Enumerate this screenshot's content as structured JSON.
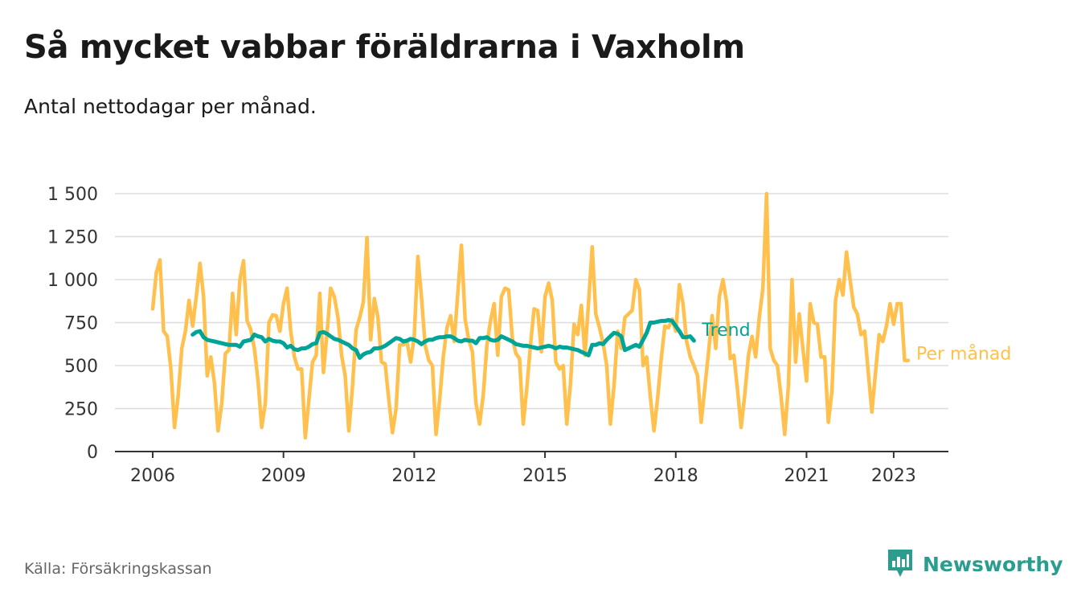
{
  "title": "Så mycket vabbar föräldrarna i Vaxholm",
  "subtitle": "Antal nettodagar per månad.",
  "source": "Källa: Försäkringskassan",
  "brand": {
    "name": "Newsworthy",
    "icon": "newsworthy-logo-icon"
  },
  "colors": {
    "per_month": "#ffc04d",
    "trend": "#00a497",
    "grid": "#dddddd",
    "axis": "#333333"
  },
  "chart_data": {
    "type": "line",
    "x_start": "2006-01",
    "x_end": "2023-05",
    "xticks": [
      {
        "date": "2006-01",
        "label": "2006"
      },
      {
        "date": "2009-01",
        "label": "2009"
      },
      {
        "date": "2012-01",
        "label": "2012"
      },
      {
        "date": "2015-01",
        "label": "2015"
      },
      {
        "date": "2018-01",
        "label": "2018"
      },
      {
        "date": "2021-01",
        "label": "2021"
      },
      {
        "date": "2023-01",
        "label": "2023"
      }
    ],
    "yticks": [
      {
        "value": 0,
        "label": "0"
      },
      {
        "value": 250,
        "label": "250"
      },
      {
        "value": 500,
        "label": "500"
      },
      {
        "value": 750,
        "label": "750"
      },
      {
        "value": 1000,
        "label": "1 000"
      },
      {
        "value": 1250,
        "label": "1 250"
      },
      {
        "value": 1500,
        "label": "1 500"
      }
    ],
    "ylim": [
      0,
      1550
    ],
    "grid": true,
    "series": [
      {
        "name": "Per månad",
        "key": "per_month",
        "start": "2006-01",
        "values": [
          830,
          1040,
          1115,
          700,
          670,
          480,
          140,
          320,
          600,
          700,
          880,
          730,
          900,
          1095,
          900,
          440,
          550,
          400,
          120,
          280,
          570,
          590,
          920,
          680,
          1000,
          1110,
          760,
          710,
          600,
          410,
          140,
          280,
          750,
          795,
          790,
          700,
          860,
          950,
          700,
          550,
          480,
          480,
          80,
          300,
          520,
          560,
          920,
          460,
          690,
          950,
          900,
          780,
          560,
          440,
          120,
          380,
          710,
          780,
          870,
          1245,
          650,
          890,
          780,
          520,
          510,
          300,
          110,
          250,
          620,
          620,
          640,
          520,
          670,
          1135,
          900,
          620,
          530,
          500,
          100,
          300,
          550,
          720,
          790,
          640,
          920,
          1200,
          770,
          650,
          580,
          280,
          160,
          330,
          620,
          760,
          860,
          560,
          900,
          950,
          940,
          660,
          570,
          540,
          160,
          370,
          620,
          830,
          820,
          580,
          900,
          980,
          880,
          520,
          480,
          500,
          160,
          390,
          740,
          680,
          850,
          560,
          870,
          1190,
          800,
          720,
          630,
          500,
          160,
          380,
          700,
          600,
          780,
          800,
          820,
          1000,
          940,
          500,
          550,
          320,
          120,
          310,
          540,
          730,
          720,
          770,
          700,
          970,
          860,
          640,
          550,
          500,
          440,
          170,
          370,
          570,
          790,
          600,
          900,
          1000,
          870,
          540,
          560,
          360,
          140,
          330,
          560,
          670,
          550,
          780,
          950,
          1500,
          600,
          530,
          500,
          320,
          100,
          380,
          1000,
          520,
          800,
          600,
          410,
          860,
          750,
          740,
          550,
          550,
          170,
          350,
          880,
          1000,
          910,
          1160,
          1000,
          840,
          800,
          680,
          700,
          460,
          230,
          460,
          680,
          640,
          730,
          860,
          740,
          860,
          860,
          530,
          530
        ]
      },
      {
        "name": "Trend",
        "key": "trend",
        "start": "2006-12",
        "values": [
          680,
          695,
          700,
          665,
          650,
          645,
          640,
          635,
          630,
          625,
          620,
          620,
          620,
          610,
          640,
          645,
          650,
          680,
          670,
          665,
          640,
          655,
          645,
          640,
          640,
          630,
          605,
          615,
          595,
          590,
          600,
          600,
          610,
          625,
          630,
          690,
          695,
          685,
          670,
          655,
          650,
          640,
          630,
          620,
          600,
          590,
          545,
          565,
          575,
          580,
          600,
          600,
          605,
          615,
          630,
          645,
          660,
          655,
          640,
          645,
          655,
          650,
          640,
          625,
          640,
          650,
          650,
          660,
          665,
          665,
          670,
          670,
          660,
          645,
          640,
          650,
          645,
          645,
          630,
          660,
          660,
          665,
          650,
          645,
          650,
          670,
          660,
          650,
          640,
          625,
          620,
          615,
          615,
          610,
          605,
          600,
          605,
          610,
          615,
          610,
          600,
          610,
          605,
          605,
          600,
          595,
          590,
          580,
          570,
          560,
          620,
          620,
          630,
          625,
          650,
          670,
          690,
          685,
          670,
          590,
          600,
          610,
          620,
          610,
          650,
          690,
          750,
          750,
          755,
          760,
          760,
          765,
          760,
          730,
          700,
          665,
          665,
          670,
          645
        ]
      }
    ]
  }
}
